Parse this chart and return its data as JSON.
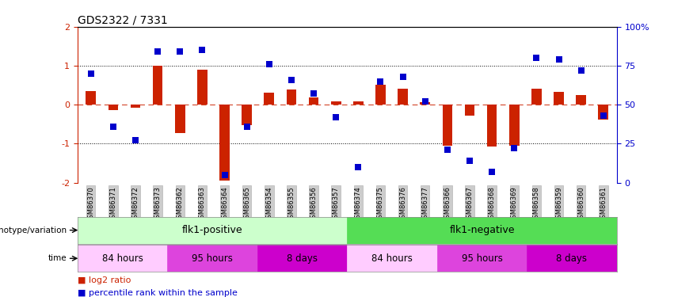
{
  "title": "GDS2322 / 7331",
  "samples": [
    "GSM86370",
    "GSM86371",
    "GSM86372",
    "GSM86373",
    "GSM86362",
    "GSM86363",
    "GSM86364",
    "GSM86365",
    "GSM86354",
    "GSM86355",
    "GSM86356",
    "GSM86357",
    "GSM86374",
    "GSM86375",
    "GSM86376",
    "GSM86377",
    "GSM86366",
    "GSM86367",
    "GSM86368",
    "GSM86369",
    "GSM86358",
    "GSM86359",
    "GSM86360",
    "GSM86361"
  ],
  "log2_ratio": [
    0.35,
    -0.13,
    -0.07,
    1.0,
    -0.72,
    0.9,
    -1.95,
    -0.52,
    0.3,
    0.38,
    0.18,
    0.08,
    0.09,
    0.52,
    0.42,
    0.06,
    -1.05,
    -0.28,
    -1.08,
    -1.05,
    0.42,
    0.32,
    0.25,
    -0.38
  ],
  "percentile": [
    70,
    36,
    27,
    84,
    84,
    85,
    5,
    36,
    76,
    66,
    57,
    42,
    10,
    65,
    68,
    52,
    21,
    14,
    7,
    22,
    80,
    79,
    72,
    43
  ],
  "ylim_left": [
    -2,
    2
  ],
  "ylim_right": [
    0,
    100
  ],
  "yticks_left": [
    -2,
    -1,
    0,
    1,
    2
  ],
  "yticks_right": [
    0,
    25,
    50,
    75,
    100
  ],
  "y2ticklabels": [
    "0",
    "25",
    "50",
    "75",
    "100%"
  ],
  "hlines_dotted": [
    -1.0,
    1.0
  ],
  "bar_color": "#cc2200",
  "dot_color": "#0000cc",
  "genotype_groups": [
    {
      "label": "flk1-positive",
      "start": 0,
      "end": 12,
      "color": "#ccffcc"
    },
    {
      "label": "flk1-negative",
      "start": 12,
      "end": 24,
      "color": "#55dd55"
    }
  ],
  "time_groups": [
    {
      "label": "84 hours",
      "start": 0,
      "end": 4,
      "color": "#ffccff"
    },
    {
      "label": "95 hours",
      "start": 4,
      "end": 8,
      "color": "#dd44dd"
    },
    {
      "label": "8 days",
      "start": 8,
      "end": 12,
      "color": "#cc00cc"
    },
    {
      "label": "84 hours",
      "start": 12,
      "end": 16,
      "color": "#ffccff"
    },
    {
      "label": "95 hours",
      "start": 16,
      "end": 20,
      "color": "#dd44dd"
    },
    {
      "label": "8 days",
      "start": 20,
      "end": 24,
      "color": "#cc00cc"
    }
  ],
  "genotype_label": "genotype/variation",
  "time_label": "time",
  "legend_red": "log2 ratio",
  "legend_blue": "percentile rank within the sample",
  "bar_width": 0.45,
  "dot_size": 30,
  "tick_bg_color": "#cccccc"
}
